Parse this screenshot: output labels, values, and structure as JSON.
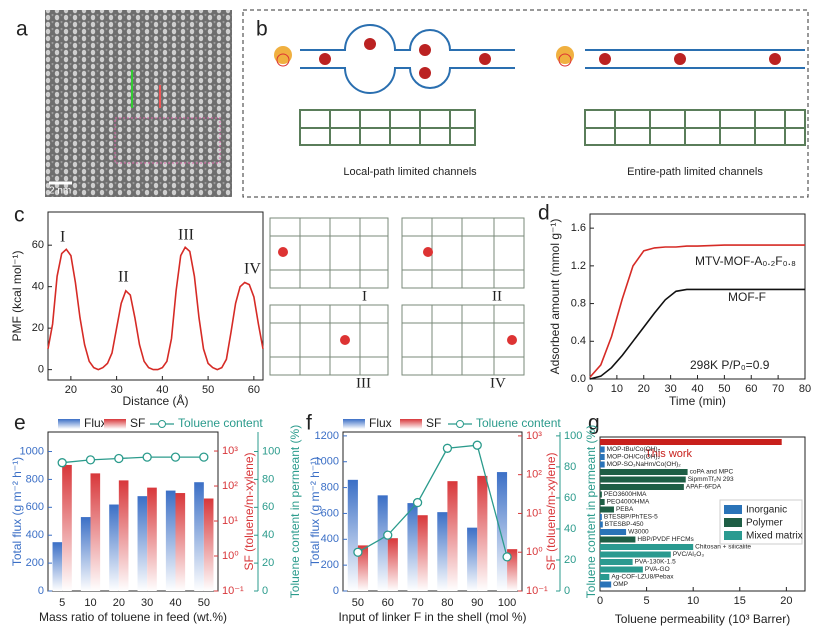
{
  "panels": {
    "labels": [
      "a",
      "b",
      "c",
      "d",
      "e",
      "f",
      "g"
    ],
    "a_scale": "2 nm",
    "b_captions": [
      "Local-path limited channels",
      "Entire-path limited channels"
    ],
    "c_structures": [
      "I",
      "II",
      "III",
      "IV"
    ]
  },
  "chart_data": [
    {
      "type": "line",
      "xlabel": "Distance (Å)",
      "ylabel": "PMF (kcal mol⁻¹)",
      "x": [
        15,
        16,
        17,
        18,
        19,
        20,
        21,
        22,
        23,
        24,
        25,
        26,
        27,
        28,
        29,
        30,
        31,
        32,
        33,
        34,
        35,
        36,
        37,
        38,
        39,
        40,
        41,
        42,
        43,
        44,
        45,
        46,
        47,
        48,
        49,
        50,
        51,
        52,
        53,
        54,
        55,
        56,
        57,
        58,
        59,
        60,
        61,
        62
      ],
      "series": [
        {
          "color": "#d62b26",
          "values": [
            10,
            22,
            45,
            56,
            58,
            55,
            42,
            25,
            12,
            4,
            1,
            0,
            1,
            3,
            8,
            20,
            32,
            38,
            36,
            25,
            12,
            4,
            1,
            0,
            0,
            1,
            4,
            15,
            38,
            55,
            59,
            57,
            45,
            25,
            10,
            3,
            1,
            0,
            1,
            5,
            18,
            32,
            40,
            42,
            41,
            35,
            22,
            10
          ]
        }
      ],
      "annotations": [
        "I",
        "II",
        "III",
        "IV"
      ],
      "xlim": [
        15,
        62
      ],
      "ylim": [
        -5,
        76
      ],
      "xticks": [
        20,
        30,
        40,
        50,
        60
      ],
      "yticks": [
        0,
        20,
        40,
        60
      ]
    },
    {
      "type": "line",
      "xlabel": "Time (min)",
      "ylabel": "Adsorbed amount (mmol g⁻¹)",
      "x": [
        0,
        4,
        8,
        12,
        16,
        20,
        24,
        28,
        32,
        36,
        40,
        50,
        60,
        70,
        80
      ],
      "series": [
        {
          "name": "MTV-MOF-A₀.₂F₀.₈",
          "color": "#d62b26",
          "values": [
            0.02,
            0.15,
            0.45,
            0.85,
            1.2,
            1.36,
            1.39,
            1.4,
            1.4,
            1.41,
            1.41,
            1.42,
            1.42,
            1.42,
            1.42
          ]
        },
        {
          "name": "MOF-F",
          "color": "#111111",
          "values": [
            0,
            0.03,
            0.12,
            0.25,
            0.4,
            0.55,
            0.7,
            0.84,
            0.93,
            0.95,
            0.95,
            0.95,
            0.95,
            0.95,
            0.95
          ]
        }
      ],
      "annotations": [
        "298K  P/P₀=0.9"
      ],
      "xlim": [
        0,
        80
      ],
      "ylim": [
        0,
        1.75
      ],
      "xticks": [
        0,
        10,
        20,
        30,
        40,
        50,
        60,
        70,
        80
      ],
      "yticks": [
        {
          "value": 0,
          "label": "0.0"
        },
        0.4,
        0.8,
        1.2,
        1.6
      ]
    },
    {
      "type": "bar_line",
      "xlabel": "Mass ratio of toluene in feed (wt.%)",
      "ylabel": "Total flux (g m⁻² h⁻¹)",
      "y2label": "SF (toluene/m-xylene)",
      "y3label": "Toluene content in permeant (%)",
      "categories": [
        "5",
        "10",
        "20",
        "30",
        "40",
        "50"
      ],
      "series": [
        {
          "name": "Flux",
          "color": "#3b6fc6",
          "values": [
            350,
            530,
            620,
            680,
            720,
            780
          ]
        },
        {
          "name": "SF",
          "color": "#d8373a",
          "axis": "y2",
          "values": [
            400,
            230,
            145,
            90,
            63,
            44
          ]
        },
        {
          "name": "Toluene content",
          "color": "#2b9b8c",
          "axis": "y3",
          "values": [
            92,
            94,
            95,
            96,
            96,
            96
          ]
        }
      ],
      "ylim": [
        0,
        1140
      ],
      "yticks": [
        0,
        200,
        400,
        600,
        800,
        1000
      ],
      "y2scale": "log",
      "y2lim": [
        0.1,
        3500
      ],
      "y2ticks": [
        {
          "value": 0.1,
          "label": "10⁻¹"
        },
        {
          "value": 1,
          "label": "10⁰"
        },
        {
          "value": 10,
          "label": "10¹"
        },
        {
          "value": 100,
          "label": "10²"
        },
        {
          "value": 1000,
          "label": "10³"
        }
      ],
      "y3lim": [
        0,
        114
      ],
      "y3ticks": [
        0,
        20,
        40,
        60,
        80,
        100
      ]
    },
    {
      "type": "bar_line",
      "xlabel": "Input of linker F in the shell (mol %)",
      "ylabel": "Total flux (g m⁻² h⁻¹)",
      "y2label": "SF (toluene/m-xylene)",
      "y3label": "Toluene content in permeant (%)",
      "categories": [
        "50",
        "60",
        "70",
        "80",
        "90",
        "100"
      ],
      "series": [
        {
          "name": "Flux",
          "color": "#3b6fc6",
          "values": [
            860,
            740,
            680,
            610,
            490,
            920
          ]
        },
        {
          "name": "SF",
          "color": "#d8373a",
          "axis": "y2",
          "values": [
            1.5,
            2.3,
            9,
            68,
            93,
            1.2
          ]
        },
        {
          "name": "Toluene content",
          "color": "#2b9b8c",
          "axis": "y3",
          "values": [
            25,
            36,
            57,
            92,
            94,
            22
          ]
        }
      ],
      "ylim": [
        0,
        1230
      ],
      "yticks": [
        0,
        200,
        400,
        600,
        800,
        1000,
        1200
      ],
      "y2scale": "log",
      "y2lim": [
        0.1,
        1260
      ],
      "y2ticks": [
        {
          "value": 0.1,
          "label": "10⁻¹"
        },
        {
          "value": 1,
          "label": "10⁰"
        },
        {
          "value": 10,
          "label": "10¹"
        },
        {
          "value": 100,
          "label": "10²"
        },
        {
          "value": 1000,
          "label": "10³"
        }
      ],
      "y3lim": [
        0,
        102.5
      ],
      "y3ticks": [
        0,
        20,
        40,
        60,
        80,
        100
      ]
    },
    {
      "type": "barh",
      "xlabel": "Toluene permeability (10³ Barrer)",
      "categories": [
        "This work",
        "MOP-tBu/Co(OH)₂",
        "MOP-OH/Co(OH)₂",
        "MOP-SO₃NaHm/Co(OH)₂",
        "coPA and MPC",
        "SipmmTf₂N 293",
        "APAF-6FDA",
        "PEO3600HMA",
        "PEO4000HMA",
        "PEBA",
        "BTESBP/PhTES-5",
        "BTESBP-450",
        "W3000",
        "HBP/PVDF HFCMs",
        "Chitosan + silicalite",
        "PVC/Al₂O₃",
        "PVA-130K-1.5",
        "PVA-GO",
        "Ag-COF-LZU8/Pebax",
        "OMP"
      ],
      "values": [
        19.5,
        0.5,
        0.5,
        0.5,
        9.4,
        9.2,
        9.0,
        0.2,
        0.5,
        1.5,
        0.2,
        0.3,
        2.8,
        3.8,
        10.0,
        7.6,
        3.5,
        4.6,
        1.0,
        1.2
      ],
      "colors": [
        "#c8201c",
        "#2a73b8",
        "#2a73b8",
        "#2a73b8",
        "#1e5e45",
        "#1e5e45",
        "#1e5e45",
        "#1e5e45",
        "#1e5e45",
        "#1e5e45",
        "#2a73b8",
        "#2a73b8",
        "#2a73b8",
        "#1e5e45",
        "#2a9a90",
        "#2a9a90",
        "#2a9a90",
        "#2a9a90",
        "#2a9a90",
        "#2a73b8"
      ],
      "legend": [
        {
          "name": "Inorganic",
          "color": "#2a73b8"
        },
        {
          "name": "Polymer",
          "color": "#1e5e45"
        },
        {
          "name": "Mixed matrix",
          "color": "#2a9a90"
        }
      ],
      "xlim": [
        0,
        22
      ],
      "xticks": [
        0,
        5,
        10,
        15,
        20
      ]
    }
  ]
}
